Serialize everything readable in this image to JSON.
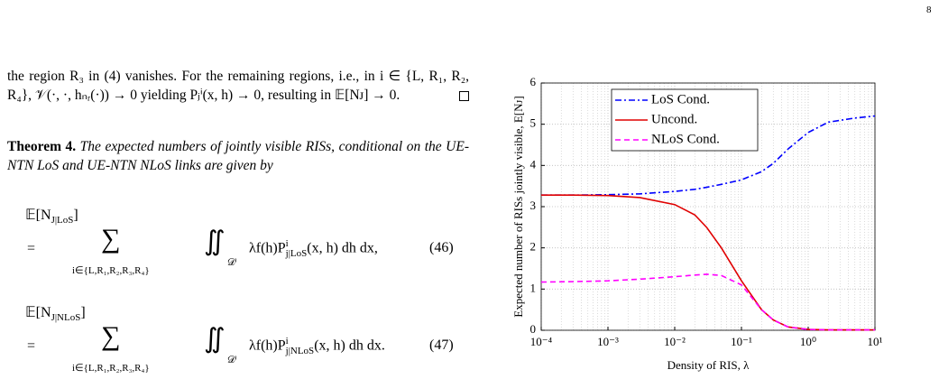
{
  "page_number": "8",
  "paragraph": "the region R₃ in (4) vanishes. For the remaining regions, i.e., in i ∈ {L, R₁, R₂, R₄}, 𝒱(·, ·, hₙᵣ(·)) → 0 yielding Pⱼⁱ(x, h) → 0, resulting in 𝔼[Nᴊ] → 0.",
  "theorem": {
    "label": "Theorem 4.",
    "body": "The expected numbers of jointly visible RISs, conditional on the UE-NTN LoS and UE-NTN NLoS links are given by"
  },
  "equations": [
    {
      "lhs": "𝔼[N",
      "lhs_sub": "J|LoS",
      "lhs_end": "]",
      "eq": "=",
      "sum": "∑",
      "index": "i∈{L,R₁,R₂,R₃,R₄}",
      "integral": "∬",
      "domain": "𝒟ⁱ",
      "integrand": "λf(h)P",
      "sup": "i",
      "sub": "j|LoS",
      "args": "(x, h) dh dx,",
      "number": "(46)"
    },
    {
      "lhs": "𝔼[N",
      "lhs_sub": "J|NLoS",
      "lhs_end": "]",
      "eq": "=",
      "sum": "∑",
      "index": "i∈{L,R₁,R₂,R₃,R₄}",
      "integral": "∬",
      "domain": "𝒟ⁱ",
      "integrand": "λf(h)P",
      "sup": "i",
      "sub": "j|NLoS",
      "args": "(x, h) dh dx.",
      "number": "(47)"
    }
  ],
  "chart_data": {
    "type": "line",
    "x_label": "Density of RIS, λ",
    "y_label": "Expected number of RISs jointly visible, E[Nᴊ]",
    "x_scale": "log",
    "grid": true,
    "minor_grid": true,
    "legend": "upper left",
    "x": [
      0.0001,
      0.0003,
      0.001,
      0.003,
      0.01,
      0.02,
      0.03,
      0.05,
      0.1,
      0.2,
      0.3,
      0.5,
      1,
      2,
      5,
      10
    ],
    "series": [
      {
        "name": "LoS Cond.",
        "color": "#0000ff",
        "style": "dash-dot",
        "values": [
          3.28,
          3.28,
          3.29,
          3.31,
          3.37,
          3.42,
          3.47,
          3.54,
          3.65,
          3.85,
          4.05,
          4.4,
          4.8,
          5.05,
          5.15,
          5.2
        ]
      },
      {
        "name": "Uncond.",
        "color": "#e00000",
        "style": "solid",
        "values": [
          3.28,
          3.28,
          3.27,
          3.22,
          3.05,
          2.8,
          2.5,
          2.0,
          1.2,
          0.5,
          0.25,
          0.08,
          0.02,
          0.01,
          0.01,
          0.01
        ]
      },
      {
        "name": "NLoS Cond.",
        "color": "#ff00ff",
        "style": "dashed",
        "values": [
          1.17,
          1.18,
          1.2,
          1.24,
          1.3,
          1.34,
          1.36,
          1.33,
          1.1,
          0.5,
          0.25,
          0.08,
          0.02,
          0.01,
          0.01,
          0.01
        ]
      }
    ],
    "xlim": [
      0.0001,
      10
    ],
    "xticks": [
      {
        "value": 0.0001,
        "label": "10⁻⁴"
      },
      {
        "value": 0.001,
        "label": "10⁻³"
      },
      {
        "value": 0.01,
        "label": "10⁻²"
      },
      {
        "value": 0.1,
        "label": "10⁻¹"
      },
      {
        "value": 1,
        "label": "10⁰"
      },
      {
        "value": 10,
        "label": "10¹"
      }
    ],
    "ylim": [
      0,
      6
    ],
    "yticks": [
      0,
      1,
      2,
      3,
      4,
      5,
      6
    ]
  }
}
